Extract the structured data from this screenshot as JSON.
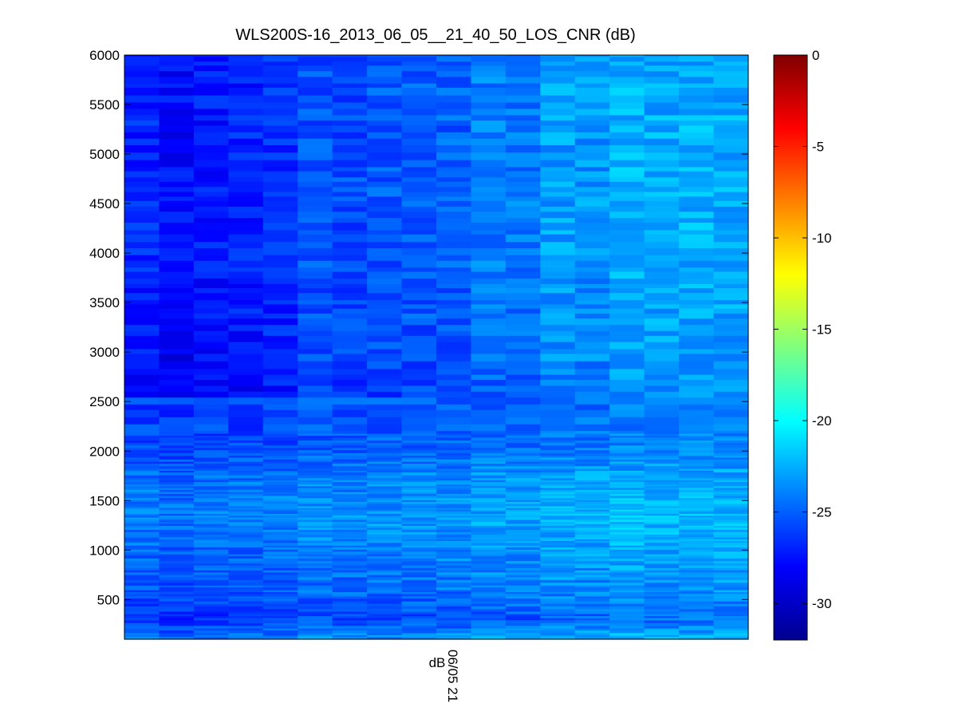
{
  "chart_data": {
    "type": "heatmap",
    "title": "WLS200S-16_2013_06_05__21_40_50_LOS_CNR (dB)",
    "x_tick_label": "06/05 21",
    "x_label_extra": "dB",
    "ylim": [
      100,
      6000
    ],
    "yticks": [
      500,
      1000,
      1500,
      2000,
      2500,
      3000,
      3500,
      4000,
      4500,
      5000,
      5500,
      6000
    ],
    "colorbar": {
      "clim": [
        -32,
        0
      ],
      "ticks": [
        0,
        -5,
        -10,
        -15,
        -20,
        -25,
        -30
      ],
      "colormap": "jet"
    },
    "columns": 18,
    "column_offsets": [
      -3.2,
      -4.2,
      -3.6,
      -3.3,
      -3.0,
      -1.8,
      -2.0,
      -1.6,
      -1.5,
      -1.4,
      -0.5,
      -0.6,
      0.6,
      0.3,
      1.2,
      0.9,
      1.1,
      1.0
    ],
    "y_profile": [
      {
        "y": 100,
        "value": -22.5
      },
      {
        "y": 300,
        "value": -25.0
      },
      {
        "y": 600,
        "value": -23.8
      },
      {
        "y": 1000,
        "value": -23.2
      },
      {
        "y": 1300,
        "value": -22.5
      },
      {
        "y": 1700,
        "value": -23.0
      },
      {
        "y": 2000,
        "value": -24.2
      },
      {
        "y": 2400,
        "value": -24.6
      },
      {
        "y": 3000,
        "value": -24.0
      },
      {
        "y": 3600,
        "value": -23.8
      },
      {
        "y": 4200,
        "value": -23.6
      },
      {
        "y": 5000,
        "value": -23.6
      },
      {
        "y": 5600,
        "value": -23.6
      },
      {
        "y": 6000,
        "value": -23.8
      }
    ]
  }
}
